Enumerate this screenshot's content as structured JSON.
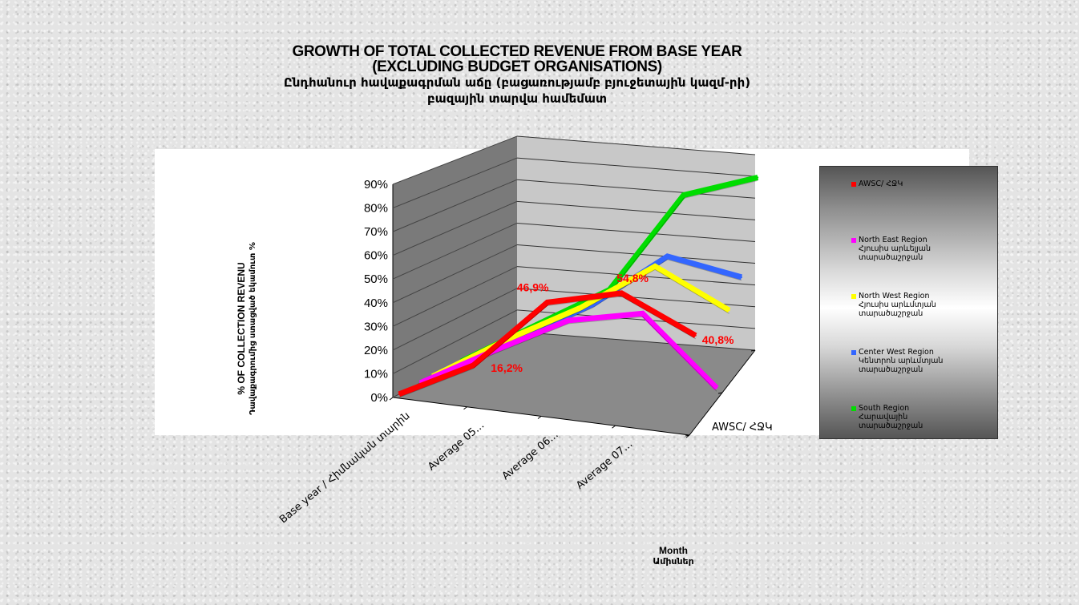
{
  "title": {
    "line1": "GROWTH OF TOTAL COLLECTED REVENUE FROM BASE YEAR",
    "line2": "(EXCLUDING BUDGET  ORGANISATIONS)",
    "line3": "Ընդհանուր հավաքագրման աճը (բացառությամբ բյուջետային կազմ-րի)",
    "line4": "բազային տարվա համեմատ"
  },
  "y_axis_title": {
    "line1": "% OF COLLECTION REVENU",
    "line2": "Դավաքագրումից ստացված եկամուտ %"
  },
  "x_axis_title": {
    "line1": "Month",
    "line2": "Ամիսներ"
  },
  "depth_axis_label": "AWSC/ ՀՋԿ",
  "chart_data": {
    "type": "line",
    "style": "3d-line",
    "categories": [
      "Base year / Հիմնական տարին",
      "Average 05...",
      "Average 06...",
      "Average 07...",
      ""
    ],
    "y_ticks": [
      "0%",
      "10%",
      "20%",
      "30%",
      "40%",
      "50%",
      "60%",
      "70%",
      "80%",
      "90%"
    ],
    "ylim": [
      0,
      90
    ],
    "grid": true,
    "legend_position": "right",
    "series": [
      {
        "name": "AWSC/ ՀՋԿ",
        "color": "#ff0000",
        "values": [
          0,
          16.2,
          46.9,
          54.8,
          40.8
        ]
      },
      {
        "name": "North East Region\nՀյուսիս արևելյան տարածաշրջան",
        "color": "#ff00ff",
        "values": [
          0,
          18,
          35,
          42,
          14
        ]
      },
      {
        "name": "North West Region\nՀյուսիս արևմտյան տարածաշրջան",
        "color": "#ffff00",
        "values": [
          0,
          20,
          38,
          60,
          45
        ]
      },
      {
        "name": "Center West Region\nԿենտրոն արևմտյան տարածաշրջան",
        "color": "#3366ff",
        "values": [
          0,
          18,
          37,
          62,
          57
        ]
      },
      {
        "name": "South Region\nՀարավային տարածաշրջան",
        "color": "#00dd00",
        "values": [
          0,
          20,
          40,
          86,
          98
        ]
      }
    ],
    "data_labels": [
      "16,2%",
      "46,9%",
      "54,8%",
      "40,8%"
    ]
  }
}
